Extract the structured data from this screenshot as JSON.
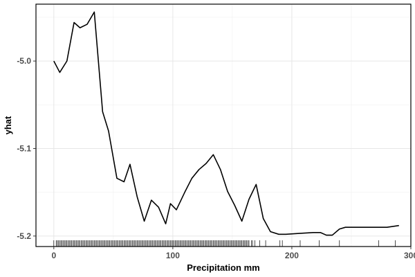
{
  "chart_data": {
    "type": "line",
    "title": "",
    "xlabel": "Precipitation mm",
    "ylabel": "yhat",
    "xlim": [
      -15,
      300
    ],
    "ylim": [
      -5.212,
      -4.935
    ],
    "x_ticks": [
      0,
      100,
      200,
      300
    ],
    "x_tick_labels": [
      "0",
      "100",
      "200",
      "300"
    ],
    "y_ticks": [
      -5.2,
      -5.1,
      -5.0
    ],
    "y_tick_labels": [
      "-5.2",
      "-5.1",
      "-5.0"
    ],
    "grid": true,
    "legend": "none",
    "series": [
      {
        "x": [
          0,
          5,
          11,
          17,
          22,
          28,
          34,
          41,
          46,
          53,
          59,
          64,
          70,
          76,
          82,
          88,
          94,
          98,
          103,
          110,
          116,
          122,
          128,
          134,
          140,
          146,
          152,
          158,
          164,
          170,
          176,
          182,
          189,
          195,
          206,
          218,
          224,
          229,
          234,
          240,
          245,
          252,
          260,
          270,
          280,
          290
        ],
        "y": [
          -5.0,
          -5.013,
          -5.0,
          -4.956,
          -4.962,
          -4.958,
          -4.944,
          -5.058,
          -5.08,
          -5.134,
          -5.138,
          -5.118,
          -5.155,
          -5.183,
          -5.159,
          -5.167,
          -5.186,
          -5.163,
          -5.17,
          -5.15,
          -5.134,
          -5.124,
          -5.117,
          -5.107,
          -5.124,
          -5.149,
          -5.165,
          -5.183,
          -5.158,
          -5.141,
          -5.18,
          -5.195,
          -5.198,
          -5.198,
          -5.197,
          -5.196,
          -5.196,
          -5.199,
          -5.199,
          -5.192,
          -5.19,
          -5.19,
          -5.19,
          -5.19,
          -5.19,
          -5.188
        ],
        "color": "#000000"
      }
    ],
    "rug": [
      0,
      2,
      3,
      4,
      5,
      6,
      7,
      8,
      9,
      10,
      11,
      12,
      13,
      14,
      15,
      16,
      17,
      18,
      19,
      20,
      21,
      22,
      23,
      24,
      25,
      26,
      27,
      28,
      29,
      30,
      31,
      32,
      33,
      34,
      35,
      36,
      37,
      38,
      39,
      40,
      41,
      42,
      43,
      44,
      45,
      46,
      47,
      48,
      49,
      50,
      51,
      52,
      53,
      54,
      55,
      56,
      57,
      58,
      59,
      60,
      61,
      62,
      63,
      64,
      65,
      66,
      67,
      68,
      69,
      70,
      71,
      72,
      73,
      74,
      75,
      76,
      77,
      78,
      79,
      80,
      81,
      82,
      83,
      84,
      85,
      86,
      87,
      88,
      89,
      90,
      91,
      92,
      93,
      94,
      95,
      96,
      97,
      98,
      99,
      100,
      101,
      102,
      103,
      104,
      105,
      106,
      107,
      108,
      109,
      110,
      111,
      112,
      113,
      114,
      115,
      116,
      117,
      118,
      119,
      120,
      121,
      122,
      123,
      124,
      125,
      126,
      127,
      128,
      129,
      130,
      131,
      132,
      133,
      134,
      135,
      136,
      137,
      138,
      139,
      140,
      141,
      142,
      143,
      144,
      145,
      146,
      147,
      148,
      149,
      150,
      151,
      152,
      153,
      154,
      155,
      156,
      157,
      158,
      159,
      160,
      161,
      162,
      163,
      164,
      166,
      167,
      169,
      173,
      178,
      190,
      192,
      207,
      223,
      240,
      273,
      287
    ]
  }
}
